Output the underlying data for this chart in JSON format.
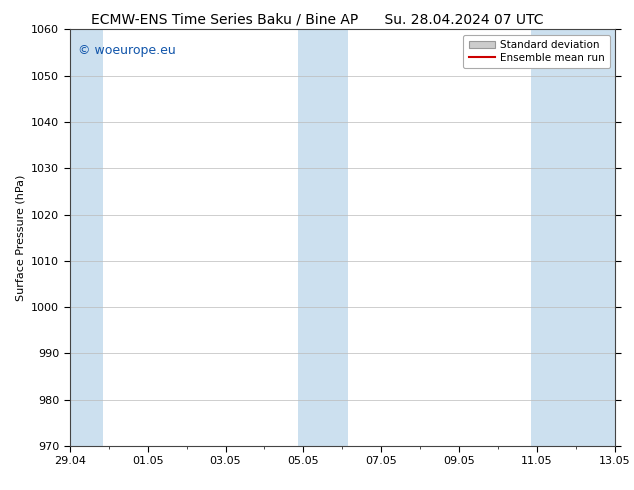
{
  "title_left": "ECMW-ENS Time Series Baku / Bine AP",
  "title_right": "Su. 28.04.2024 07 UTC",
  "ylabel": "Surface Pressure (hPa)",
  "ylim": [
    970,
    1060
  ],
  "ytick_interval": 10,
  "xtick_labels": [
    "29.04",
    "01.05",
    "03.05",
    "05.05",
    "07.05",
    "09.05",
    "11.05",
    "13.05"
  ],
  "xtick_positions": [
    0,
    2,
    4,
    6,
    8,
    10,
    12,
    14
  ],
  "x_min": 0,
  "x_max": 14,
  "shaded_bands": [
    {
      "x_start": -0.15,
      "x_end": 0.85
    },
    {
      "x_start": 5.85,
      "x_end": 7.15
    },
    {
      "x_start": 11.85,
      "x_end": 14.15
    }
  ],
  "shade_color": "#cce0ef",
  "bg_color": "#ffffff",
  "plot_bg_color": "#ffffff",
  "grid_color": "#bbbbbb",
  "legend_std_label": "Standard deviation",
  "legend_ens_label": "Ensemble mean run",
  "legend_std_color": "#cccccc",
  "legend_ens_color": "#cc0000",
  "watermark": "© woeurope.eu",
  "watermark_color": "#1155aa",
  "title_fontsize": 10,
  "axis_label_fontsize": 8,
  "tick_fontsize": 8,
  "watermark_fontsize": 9
}
